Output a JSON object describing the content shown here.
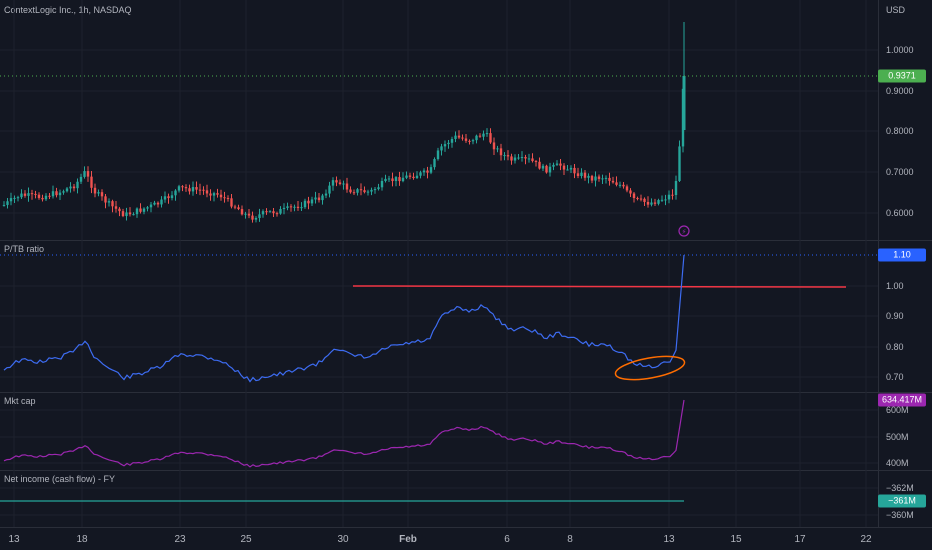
{
  "header": {
    "title": "ContextLogic Inc., 1h, NASDAQ",
    "currency": "USD"
  },
  "price_axis": {
    "ticks": [
      "1.0000",
      "0.9000",
      "0.8000",
      "0.7000",
      "0.6000"
    ],
    "last_price": "0.9371",
    "last_price_color": "#4caf50"
  },
  "ptb_pane": {
    "label": "P/TB ratio",
    "ticks": [
      "1.00",
      "0.90",
      "0.80",
      "0.70"
    ],
    "last_value": "1.10",
    "last_color": "#2962ff",
    "line_color": "#3d6cf2",
    "hline_color": "#f23645",
    "highlight_color": "#ff6d00"
  },
  "mktcap_pane": {
    "label": "Mkt cap",
    "ticks": [
      "600M",
      "500M",
      "400M"
    ],
    "last_value": "634.417M",
    "line_color": "#9c27b0"
  },
  "netincome_pane": {
    "label": "Net income (cash flow) - FY",
    "ticks": [
      "−362M",
      "−360M"
    ],
    "last_value": "−361M",
    "line_color": "#26a69a"
  },
  "time_axis": {
    "labels": [
      "13",
      "18",
      "23",
      "25",
      "30",
      "Feb",
      "6",
      "8",
      "13",
      "15",
      "17",
      "22"
    ]
  },
  "icons": {
    "event": "lightning-event-icon"
  }
}
